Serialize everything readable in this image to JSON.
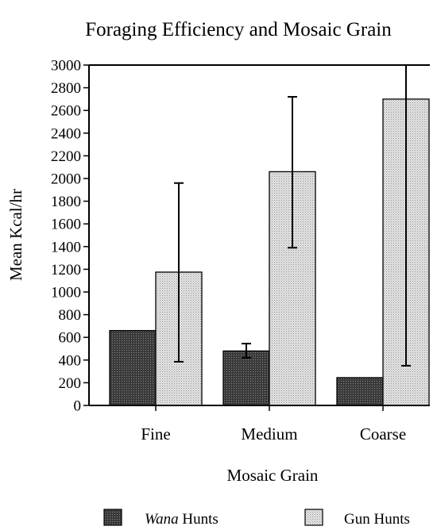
{
  "chart_data": {
    "type": "bar",
    "title": "Foraging Efficiency and Mosaic Grain",
    "xlabel": "Mosaic Grain",
    "ylabel": "Mean Kcal/hr",
    "categories": [
      "Fine",
      "Medium",
      "Coarse"
    ],
    "ylim": [
      0,
      3000
    ],
    "yticks": [
      0,
      200,
      400,
      600,
      800,
      1000,
      1200,
      1400,
      1600,
      1800,
      2000,
      2200,
      2400,
      2600,
      2800,
      3000
    ],
    "grid": false,
    "legend_position": "bottom",
    "series": [
      {
        "name": "Wana Hunts",
        "name_italic": "Wana",
        "name_rest": " Hunts",
        "fill": "#3a3a3a",
        "values": [
          660,
          480,
          245
        ],
        "error_low": [
          null,
          420,
          null
        ],
        "error_high": [
          null,
          545,
          null
        ]
      },
      {
        "name": "Gun Hunts",
        "fill": "#cfcfcf",
        "values": [
          1175,
          2060,
          2700
        ],
        "error_low": [
          385,
          1390,
          350
        ],
        "error_high": [
          1960,
          2720,
          3000
        ]
      }
    ]
  }
}
